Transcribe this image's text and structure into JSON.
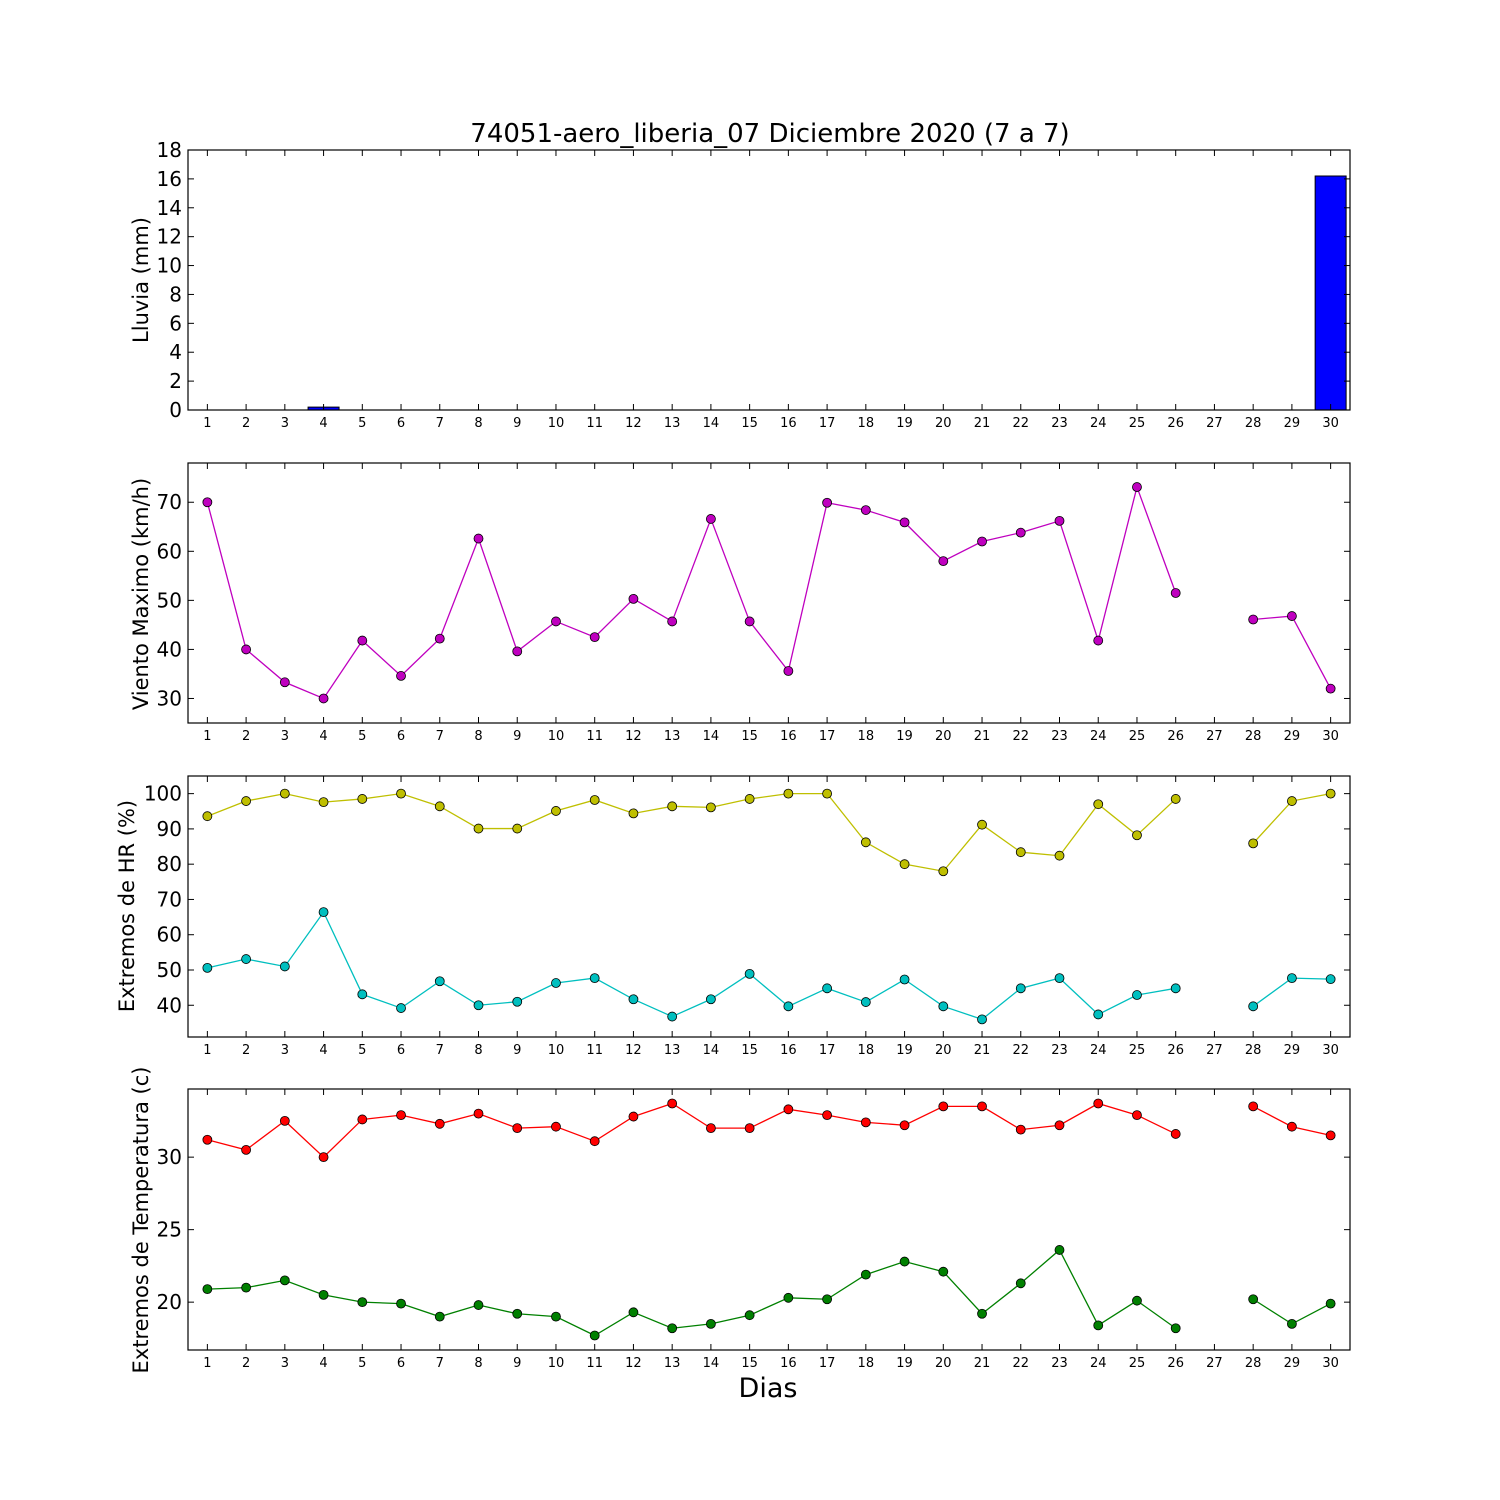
{
  "title": "74051-aero_liberia_07 Diciembre 2020  (7 a 7)",
  "xlabel": "Dias",
  "days": [
    1,
    2,
    3,
    4,
    5,
    6,
    7,
    8,
    9,
    10,
    11,
    12,
    13,
    14,
    15,
    16,
    17,
    18,
    19,
    20,
    21,
    22,
    23,
    24,
    25,
    26,
    27,
    28,
    29,
    30
  ],
  "colors": {
    "rain": "#0000ff",
    "wind": "#bf00bf",
    "hr_max": "#bfbf00",
    "hr_min": "#00bfbf",
    "temp_max": "#ff0000",
    "temp_min": "#008000"
  },
  "chart_data": [
    {
      "type": "bar",
      "ylabel": "Lluvia (mm)",
      "ylim": [
        0,
        18
      ],
      "yticks": [
        0,
        2,
        4,
        6,
        8,
        10,
        12,
        14,
        16,
        18
      ],
      "x": [
        1,
        2,
        3,
        4,
        5,
        6,
        7,
        8,
        9,
        10,
        11,
        12,
        13,
        14,
        15,
        16,
        17,
        18,
        19,
        20,
        21,
        22,
        23,
        24,
        25,
        26,
        27,
        28,
        29,
        30
      ],
      "values": [
        0,
        0,
        0,
        0.2,
        0,
        0,
        0,
        0,
        0,
        0,
        0,
        0,
        0,
        0,
        0,
        0,
        0,
        0,
        0,
        0,
        0,
        0,
        0,
        0,
        0,
        0,
        0,
        0,
        0,
        16.2
      ],
      "grid": false
    },
    {
      "type": "line",
      "ylabel": "Viento Maximo (km/h)",
      "ylim": [
        25,
        78
      ],
      "yticks": [
        30,
        40,
        50,
        60,
        70
      ],
      "x": [
        1,
        2,
        3,
        4,
        5,
        6,
        7,
        8,
        9,
        10,
        11,
        12,
        13,
        14,
        15,
        16,
        17,
        18,
        19,
        20,
        21,
        22,
        23,
        24,
        25,
        26,
        27,
        28,
        29,
        30
      ],
      "series": [
        {
          "values": [
            70,
            40,
            33.3,
            30,
            41.8,
            34.6,
            42.2,
            62.6,
            39.6,
            45.7,
            42.5,
            50.3,
            45.7,
            66.6,
            45.7,
            35.6,
            69.9,
            68.4,
            65.9,
            58.0,
            62.0,
            63.8,
            66.2,
            41.8,
            73.1,
            51.5,
            null,
            46.1,
            46.8,
            32.0
          ]
        }
      ],
      "grid": false
    },
    {
      "type": "line",
      "ylabel": "Extremos de HR (%)",
      "ylim": [
        31,
        105
      ],
      "yticks": [
        40,
        50,
        60,
        70,
        80,
        90,
        100
      ],
      "x": [
        1,
        2,
        3,
        4,
        5,
        6,
        7,
        8,
        9,
        10,
        11,
        12,
        13,
        14,
        15,
        16,
        17,
        18,
        19,
        20,
        21,
        22,
        23,
        24,
        25,
        26,
        27,
        28,
        29,
        30
      ],
      "series": [
        {
          "values": [
            93.6,
            97.9,
            100,
            97.6,
            98.5,
            100,
            96.4,
            90.1,
            90.1,
            95.1,
            98.2,
            94.4,
            96.4,
            96.1,
            98.5,
            100,
            100,
            86.2,
            80.0,
            78.0,
            91.2,
            83.4,
            82.4,
            97.0,
            88.2,
            98.5,
            null,
            85.9,
            97.9,
            100
          ]
        },
        {
          "values": [
            50.6,
            53.1,
            51.0,
            66.4,
            43.1,
            39.2,
            46.8,
            40.0,
            41.0,
            46.3,
            47.7,
            41.7,
            36.8,
            41.7,
            48.9,
            39.7,
            44.8,
            40.9,
            47.3,
            39.7,
            36.0,
            44.8,
            47.7,
            37.4,
            42.9,
            44.8,
            null,
            39.7,
            47.7,
            47.4
          ]
        }
      ],
      "grid": false
    },
    {
      "type": "line",
      "ylabel": "Extremos de Temperatura (c)",
      "ylim": [
        16.7,
        34.7
      ],
      "yticks": [
        20,
        25,
        30
      ],
      "x": [
        1,
        2,
        3,
        4,
        5,
        6,
        7,
        8,
        9,
        10,
        11,
        12,
        13,
        14,
        15,
        16,
        17,
        18,
        19,
        20,
        21,
        22,
        23,
        24,
        25,
        26,
        27,
        28,
        29,
        30
      ],
      "series": [
        {
          "values": [
            31.2,
            30.5,
            32.5,
            30.0,
            32.6,
            32.9,
            32.3,
            33.0,
            32.0,
            32.1,
            31.1,
            32.8,
            33.7,
            32.0,
            32.0,
            33.3,
            32.9,
            32.4,
            32.2,
            33.5,
            33.5,
            31.9,
            32.2,
            33.7,
            32.9,
            31.6,
            null,
            33.5,
            32.1,
            31.5
          ]
        },
        {
          "values": [
            20.9,
            21.0,
            21.5,
            20.5,
            20.0,
            19.9,
            19.0,
            19.8,
            19.2,
            19.0,
            17.7,
            19.3,
            18.2,
            18.5,
            19.1,
            20.3,
            20.2,
            21.9,
            22.8,
            22.1,
            19.2,
            21.3,
            23.6,
            18.4,
            20.1,
            18.2,
            null,
            20.2,
            18.5,
            19.9
          ]
        }
      ],
      "grid": false
    }
  ]
}
